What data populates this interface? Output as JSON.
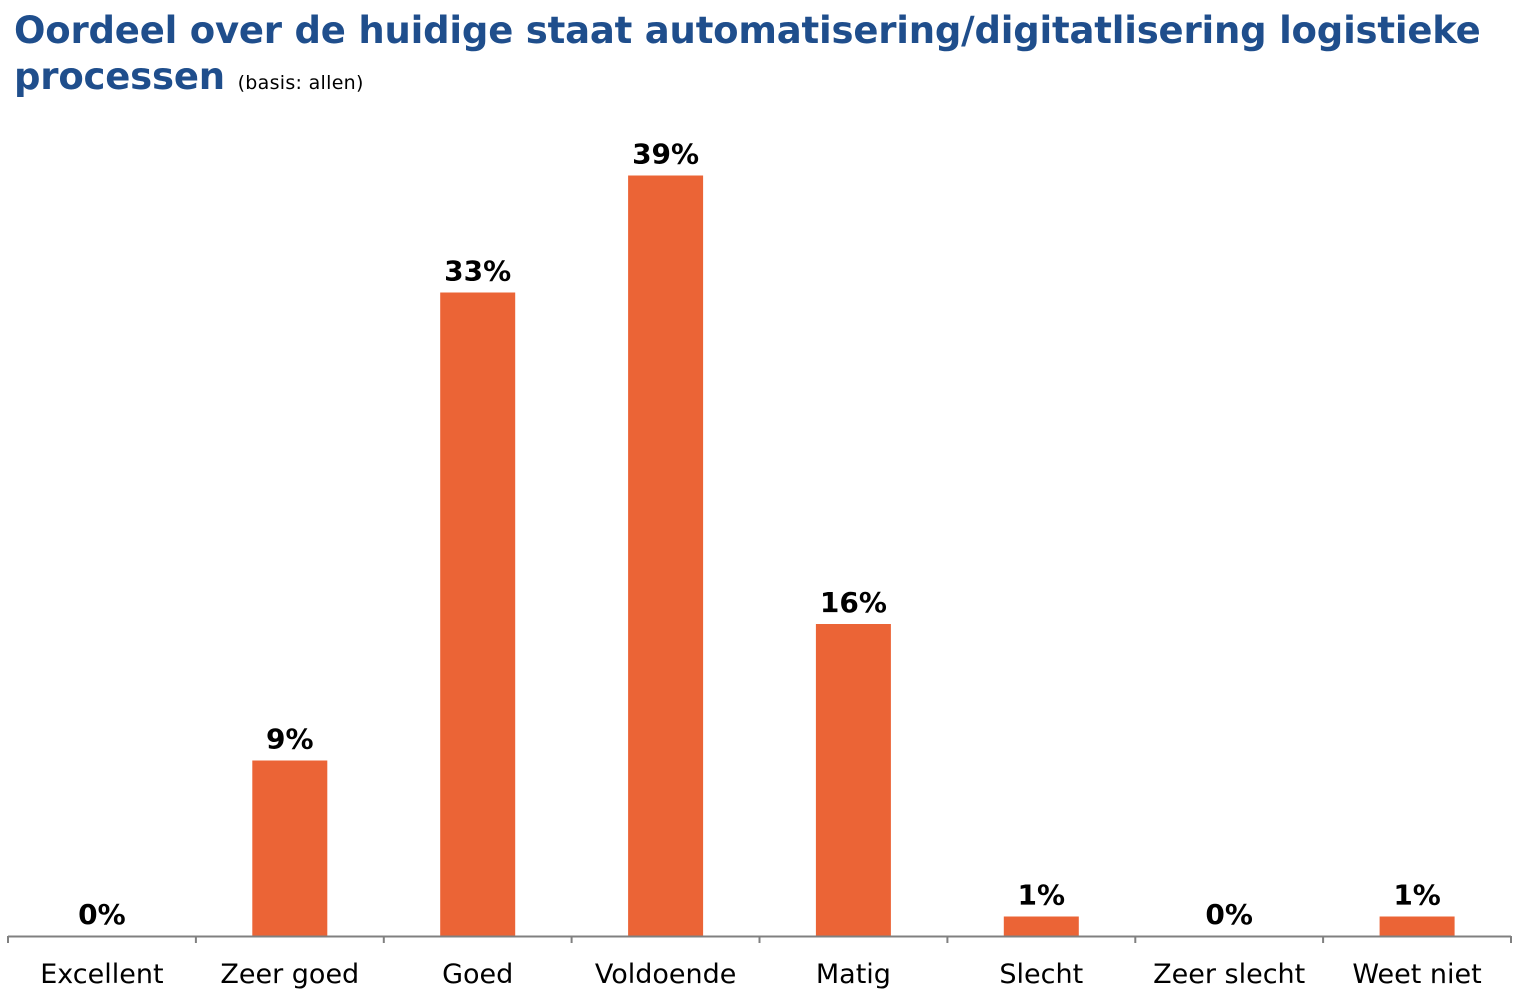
{
  "title": "Oordeel over de huidige staat automatisering/digitatlisering logistieke processen",
  "subtitle": "(basis: allen)",
  "colors": {
    "bar": "#eb6436",
    "title": "#1f4e8c",
    "axis": "#808080"
  },
  "chart_data": {
    "type": "bar",
    "title": "Oordeel over de huidige staat automatisering/digitatlisering logistieke processen",
    "subtitle": "(basis: allen)",
    "categories": [
      "Excellent",
      "Zeer goed",
      "Goed",
      "Voldoende",
      "Matig",
      "Slecht",
      "Zeer slecht",
      "Weet niet"
    ],
    "values": [
      0,
      9,
      33,
      39,
      16,
      1,
      0,
      1
    ],
    "data_labels": [
      "0%",
      "9%",
      "33%",
      "39%",
      "16%",
      "1%",
      "0%",
      "1%"
    ],
    "unit": "%",
    "ylim": [
      0,
      45
    ],
    "grid": false,
    "legend": "none"
  }
}
